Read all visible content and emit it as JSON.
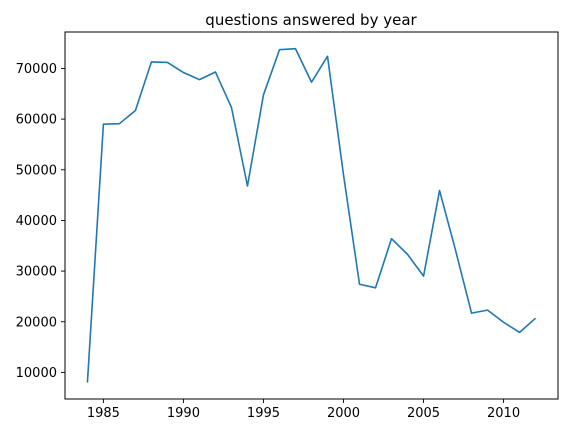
{
  "chart_data": {
    "type": "line",
    "title": "questions answered by year",
    "xlabel": "",
    "ylabel": "",
    "xlim": [
      1982.6,
      2013.4
    ],
    "ylim": [
      4750,
      77200
    ],
    "grid": false,
    "x_ticks": [
      1985,
      1990,
      1995,
      2000,
      2005,
      2010
    ],
    "y_ticks": [
      10000,
      20000,
      30000,
      40000,
      50000,
      60000,
      70000
    ],
    "series": [
      {
        "color": "#1f77b4",
        "x": [
          1984,
          1985,
          1986,
          1987,
          1988,
          1989,
          1990,
          1991,
          1992,
          1993,
          1994,
          1995,
          1996,
          1997,
          1998,
          1999,
          2000,
          2001,
          2002,
          2003,
          2004,
          2005,
          2006,
          2007,
          2008,
          2009,
          2010,
          2011,
          2012
        ],
        "values": [
          8000,
          59000,
          59100,
          61700,
          71300,
          71200,
          69200,
          67800,
          69300,
          62300,
          46800,
          64800,
          73700,
          73900,
          67300,
          72400,
          49000,
          27400,
          26700,
          36400,
          33300,
          29000,
          45900,
          34100,
          21700,
          22300,
          19900,
          17900,
          20700
        ]
      }
    ]
  }
}
